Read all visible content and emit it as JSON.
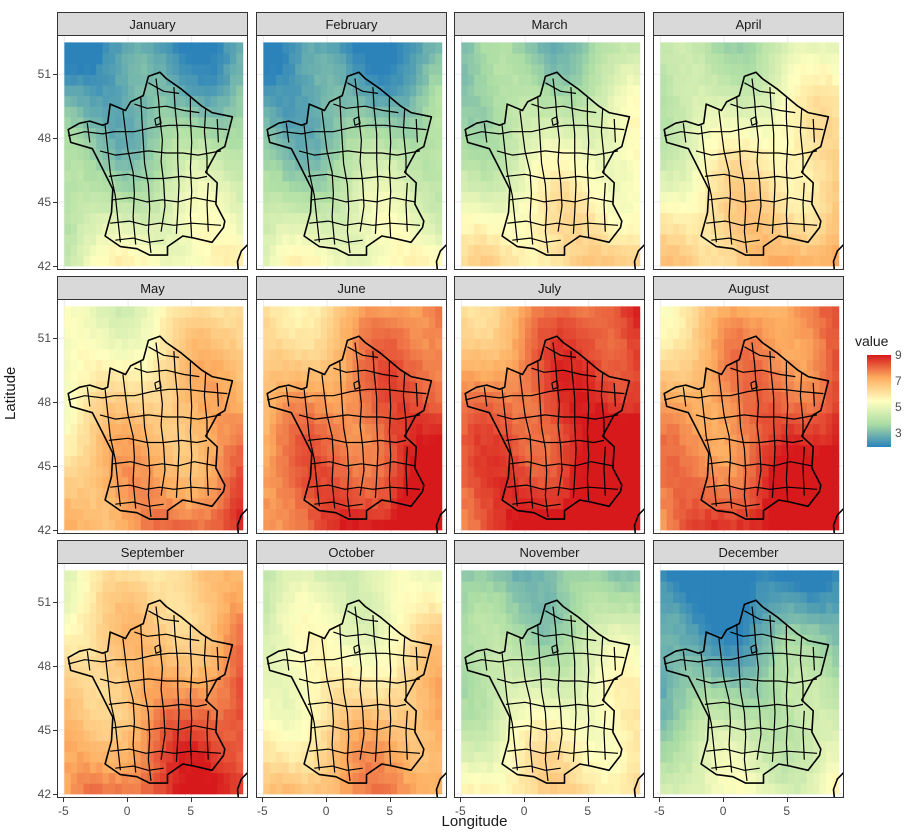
{
  "chart_data": {
    "type": "heatmap",
    "facet_labels": [
      "January",
      "February",
      "March",
      "April",
      "May",
      "June",
      "July",
      "August",
      "September",
      "October",
      "November",
      "December"
    ],
    "facet_means": [
      3.8,
      3.8,
      4.9,
      5.6,
      6.7,
      7.9,
      8.5,
      8.0,
      7.2,
      6.0,
      4.7,
      3.5
    ],
    "xlabel": "Longitude",
    "ylabel": "Latitude",
    "xlim": [
      -5.5,
      9.5
    ],
    "ylim": [
      41.8,
      52.8
    ],
    "x_ticks": [
      "-5",
      "0",
      "5"
    ],
    "x_tick_values": [
      -5,
      0,
      5
    ],
    "y_ticks": [
      "42",
      "45",
      "48",
      "51"
    ],
    "y_tick_values": [
      42,
      45,
      48,
      51
    ],
    "legend": {
      "title": "value",
      "labels": [
        "9",
        "7",
        "5",
        "3"
      ],
      "values": [
        9,
        7,
        5,
        3
      ],
      "range": [
        1.9,
        9.0
      ],
      "placement": "right"
    },
    "palette": [
      "#2b83ba",
      "#abdda4",
      "#ffffbf",
      "#fdae61",
      "#d7191c"
    ],
    "grid": true
  }
}
